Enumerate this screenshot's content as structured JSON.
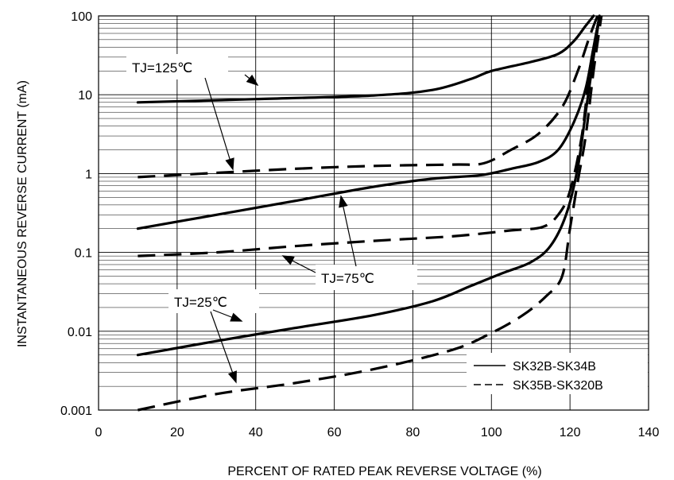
{
  "chart_data": {
    "type": "line",
    "title": "",
    "xlabel": "PERCENT OF RATED PEAK REVERSE VOLTAGE (%)",
    "ylabel": "INSTANTANEOUS REVERSE CURRENT (mA)",
    "xlim": [
      0,
      140
    ],
    "ylim": [
      0.001,
      100
    ],
    "yscale": "log",
    "grid": true,
    "x_ticks": [
      "0",
      "20",
      "40",
      "60",
      "80",
      "100",
      "120",
      "140"
    ],
    "y_ticks": [
      "0.001",
      "0.01",
      "0.1",
      "1",
      "10",
      "100"
    ],
    "legend_position": "bottom-right",
    "legend": [
      {
        "label": "SK32B-SK34B",
        "style": "solid"
      },
      {
        "label": "SK35B-SK320B",
        "style": "dashed"
      }
    ],
    "annotations": [
      {
        "text": "TJ=125℃"
      },
      {
        "text": "TJ=75℃"
      },
      {
        "text": "TJ=25℃"
      }
    ],
    "series": [
      {
        "style": "solid",
        "points": [
          [
            10,
            8
          ],
          [
            40,
            8.8
          ],
          [
            70,
            9.8
          ],
          [
            85,
            11.5
          ],
          [
            95,
            16
          ],
          [
            100,
            20
          ],
          [
            110,
            26
          ],
          [
            117,
            33
          ],
          [
            121,
            48
          ],
          [
            124,
            75
          ],
          [
            126,
            100
          ]
        ]
      },
      {
        "style": "dashed",
        "points": [
          [
            10,
            0.9
          ],
          [
            30,
            1.02
          ],
          [
            50,
            1.15
          ],
          [
            70,
            1.25
          ],
          [
            90,
            1.3
          ],
          [
            98,
            1.35
          ],
          [
            105,
            2
          ],
          [
            112,
            3.2
          ],
          [
            118,
            7
          ],
          [
            122,
            20
          ],
          [
            125,
            55
          ],
          [
            127,
            100
          ]
        ]
      },
      {
        "style": "solid",
        "points": [
          [
            10,
            0.2
          ],
          [
            30,
            0.3
          ],
          [
            50,
            0.45
          ],
          [
            70,
            0.68
          ],
          [
            85,
            0.86
          ],
          [
            97,
            0.95
          ],
          [
            105,
            1.15
          ],
          [
            112,
            1.4
          ],
          [
            117,
            2
          ],
          [
            121,
            4.5
          ],
          [
            124,
            12
          ],
          [
            126,
            40
          ],
          [
            127.5,
            100
          ]
        ]
      },
      {
        "style": "dashed",
        "points": [
          [
            10,
            0.09
          ],
          [
            30,
            0.1
          ],
          [
            50,
            0.12
          ],
          [
            70,
            0.14
          ],
          [
            90,
            0.16
          ],
          [
            105,
            0.19
          ],
          [
            113,
            0.21
          ],
          [
            117,
            0.3
          ],
          [
            120,
            0.6
          ],
          [
            123,
            3
          ],
          [
            125,
            20
          ],
          [
            127,
            70
          ],
          [
            128,
            100
          ]
        ]
      },
      {
        "style": "solid",
        "points": [
          [
            10,
            0.005
          ],
          [
            30,
            0.0075
          ],
          [
            50,
            0.011
          ],
          [
            70,
            0.016
          ],
          [
            85,
            0.024
          ],
          [
            95,
            0.038
          ],
          [
            103,
            0.055
          ],
          [
            110,
            0.075
          ],
          [
            115,
            0.12
          ],
          [
            119,
            0.3
          ],
          [
            122,
            1.2
          ],
          [
            124,
            6
          ],
          [
            126,
            30
          ],
          [
            127.5,
            100
          ]
        ]
      },
      {
        "style": "dashed",
        "points": [
          [
            10,
            0.001
          ],
          [
            30,
            0.0016
          ],
          [
            50,
            0.0022
          ],
          [
            70,
            0.0033
          ],
          [
            90,
            0.0058
          ],
          [
            100,
            0.0095
          ],
          [
            108,
            0.016
          ],
          [
            114,
            0.028
          ],
          [
            118,
            0.05
          ],
          [
            120,
            0.2
          ],
          [
            122,
            0.8
          ],
          [
            124,
            3
          ],
          [
            126,
            20
          ],
          [
            128,
            100
          ]
        ]
      }
    ]
  }
}
